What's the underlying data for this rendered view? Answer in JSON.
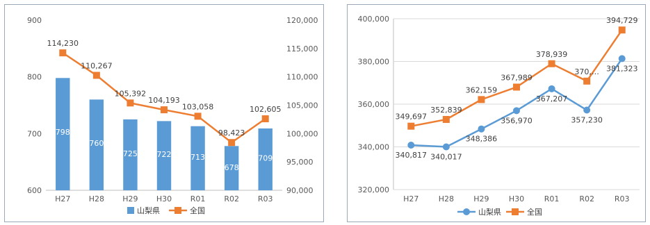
{
  "chart_data": [
    {
      "type": "bar+line",
      "categories": [
        "H27",
        "H28",
        "H29",
        "H30",
        "R01",
        "R02",
        "R03"
      ],
      "series": [
        {
          "name": "山梨県",
          "kind": "bar",
          "axis": "left",
          "color": "#5b9bd5",
          "values": [
            798,
            760,
            725,
            722,
            713,
            678,
            709
          ],
          "labels": [
            "798",
            "760",
            "725",
            "722",
            "713",
            "678",
            "709"
          ]
        },
        {
          "name": "全国",
          "kind": "line",
          "axis": "right",
          "color": "#ed7d31",
          "values": [
            114230,
            110267,
            105392,
            104193,
            103058,
            98423,
            102605
          ],
          "labels": [
            "114,230",
            "110,267",
            "105,392",
            "104,193",
            "103,058",
            "98,423",
            "102,605"
          ]
        }
      ],
      "y_left": {
        "min": 600,
        "max": 900,
        "ticks": [
          "600",
          "700",
          "800",
          "900"
        ]
      },
      "y_right": {
        "min": 90000,
        "max": 120000,
        "ticks": [
          "90,000",
          "95,000",
          "100,000",
          "105,000",
          "110,000",
          "115,000",
          "120,000"
        ]
      },
      "grid": false,
      "legend": "bottom"
    },
    {
      "type": "line",
      "categories": [
        "H27",
        "H28",
        "H29",
        "H30",
        "R01",
        "R02",
        "R03"
      ],
      "series": [
        {
          "name": "山梨県",
          "color": "#5b9bd5",
          "marker": "circle",
          "values": [
            340817,
            340017,
            348386,
            356970,
            367207,
            357230,
            381323
          ],
          "labels": [
            "340,817",
            "340,017",
            "348,386",
            "356,970",
            "367,207",
            "357,230",
            "381,323"
          ]
        },
        {
          "name": "全国",
          "color": "#ed7d31",
          "marker": "square",
          "values": [
            349697,
            352839,
            362159,
            367989,
            378939,
            370800,
            394729
          ],
          "labels": [
            "349,697",
            "352,839",
            "362,159",
            "367,989",
            "378,939",
            "370,…",
            "394,729"
          ]
        }
      ],
      "y": {
        "min": 320000,
        "max": 400000,
        "ticks": [
          "320,000",
          "340,000",
          "360,000",
          "380,000",
          "400,000"
        ]
      },
      "grid": true,
      "legend": "bottom"
    }
  ]
}
